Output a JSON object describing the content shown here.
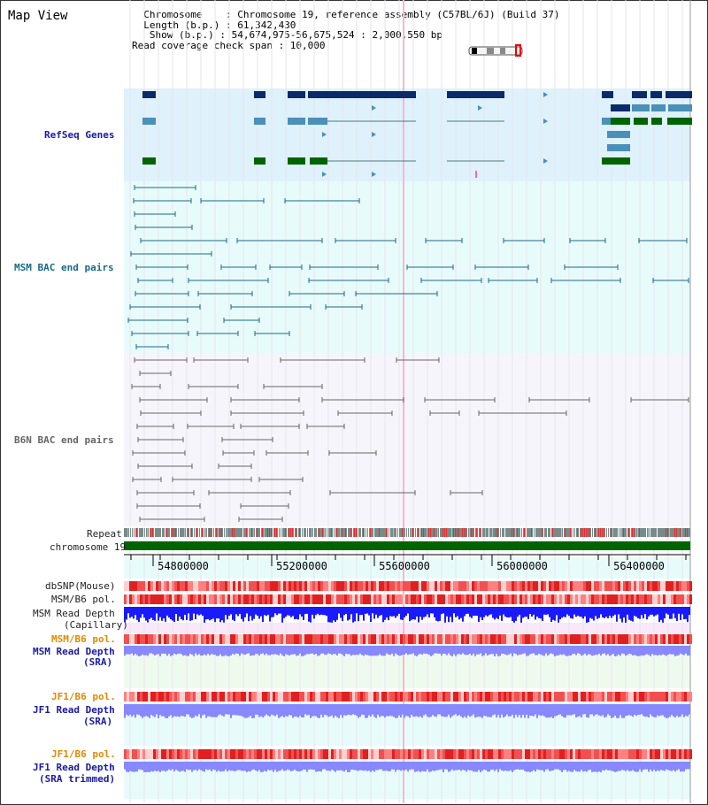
{
  "page": {
    "title": "Map View",
    "info_lines": [
      "  Chromosome    : Chromosome 19, reference assembly (C57BL/6J) (Build 37)",
      "  Length (b.p.) : 61,342,430",
      "   Show (b.p.) : 54,674,975-56,675,524 : 2,000,550 bp",
      "Read coverage check span : 10,000"
    ]
  },
  "tracks": {
    "refseq": "RefSeq Genes",
    "msm_bac": "MSM BAC end pairs",
    "b6n_bac": "B6N BAC end pairs",
    "repeat": "Repeat",
    "chromosome": "chromosome 19",
    "dbsnp": "dbSNP(Mouse)",
    "msm_b6_pol": "MSM/B6 pol.",
    "msm_read_depth_cap_1": "MSM Read Depth",
    "msm_read_depth_cap_2": "(Capillary)",
    "msm_b6_pol_2": "MSM/B6 pol.",
    "msm_read_depth_sra_1": "MSM Read Depth",
    "msm_read_depth_sra_2": "(SRA)",
    "jf1_b6_pol": "JF1/B6 pol.",
    "jf1_read_depth_sra_1": "JF1 Read Depth",
    "jf1_read_depth_sra_2": "(SRA)",
    "jf1_b6_pol_2": "JF1/B6 pol.",
    "jf1_read_depth_trim_1": "JF1 Read Depth",
    "jf1_read_depth_trim_2": "(SRA trimmed)"
  },
  "axis": {
    "ticks": [
      "54800000",
      "55200000",
      "55600000",
      "56000000",
      "56400000"
    ]
  },
  "colors": {
    "refseq_bg": "#dff1fb",
    "msm_bg": "#e8fbfb",
    "b6n_bg": "#f5f5fb",
    "gene_dark": "#0a2a6a",
    "gene_mid": "#4a90b8",
    "gene_green": "#006400",
    "bac_teal": "#1a6a8a",
    "bac_gray": "#666666",
    "chrom_green": "#006400",
    "snp_red": "#f05050",
    "depth_blue": "#1a1aff",
    "depth_light": "#8888ff"
  }
}
